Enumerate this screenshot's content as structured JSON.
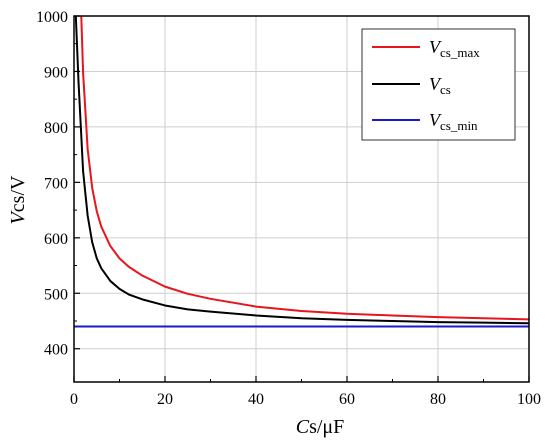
{
  "chart_data": {
    "type": "line",
    "xlabel": {
      "italic": "C",
      "rest": "s/μF"
    },
    "ylabel": {
      "italic": "V",
      "rest": "cs/V"
    },
    "xlim": [
      0,
      100
    ],
    "ylim": [
      340,
      1000
    ],
    "xticks": [
      0,
      20,
      40,
      60,
      80,
      100
    ],
    "yticks": [
      400,
      500,
      600,
      700,
      800,
      900,
      1000
    ],
    "grid": true,
    "legend_position": "top-right",
    "series": [
      {
        "name": "Vcs_max",
        "legend_main": "V",
        "legend_sub": "cs_max",
        "color": "#e8141e",
        "x": [
          1.6,
          2,
          3,
          4,
          5,
          6,
          8,
          10,
          12,
          15,
          20,
          25,
          30,
          40,
          50,
          60,
          70,
          80,
          90,
          100
        ],
        "y": [
          1000,
          898,
          760,
          690,
          648,
          620,
          585,
          563,
          548,
          532,
          512,
          499,
          490,
          476,
          468,
          463,
          460,
          457,
          455,
          453
        ]
      },
      {
        "name": "Vcs",
        "legend_main": "V",
        "legend_sub": "cs",
        "color": "#000000",
        "x": [
          0.4,
          1,
          2,
          3,
          4,
          5,
          6,
          8,
          10,
          12,
          15,
          20,
          25,
          30,
          40,
          50,
          60,
          70,
          80,
          90,
          100
        ],
        "y": [
          1000,
          880,
          720,
          640,
          592,
          563,
          545,
          522,
          508,
          498,
          489,
          478,
          471,
          467,
          460,
          455,
          452,
          450,
          448,
          447,
          446
        ]
      },
      {
        "name": "Vcs_min",
        "legend_main": "V",
        "legend_sub": "cs_min",
        "color": "#1a1acc",
        "x": [
          0,
          100
        ],
        "y": [
          440,
          440
        ]
      }
    ]
  }
}
